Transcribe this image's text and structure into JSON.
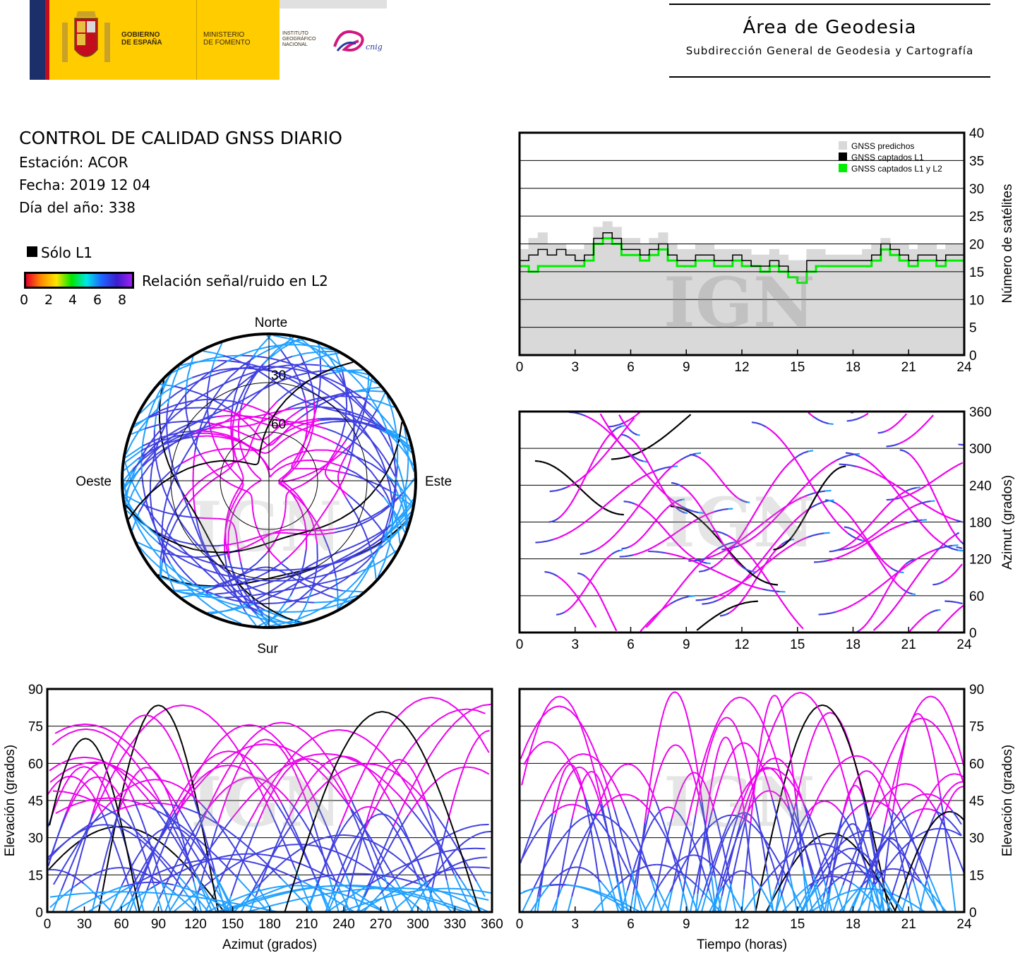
{
  "header": {
    "gobierno": "GOBIERNO\nDE ESPAÑA",
    "ministerio": "MINISTERIO\nDE FOMENTO",
    "instituto": "INSTITUTO\nGEOGRÁFICO\nNACIONAL",
    "cnig": "cnig",
    "area_title": "Área de Geodesia",
    "area_subtitle": "Subdirección General de Geodesia y Cartografía",
    "colors": {
      "yellow": "#ffcc00",
      "red": "#c60b1e",
      "blue": "#1c2f6b"
    }
  },
  "info": {
    "title": "CONTROL DE CALIDAD GNSS DIARIO",
    "station": "Estación: ACOR",
    "date": "Fecha: 2019 12 04",
    "doy": "Día del año: 338"
  },
  "legend": {
    "solo_l1": "Sólo L1",
    "snr_label": "Relación señal/ruido en L2",
    "snr_ticks": [
      "0",
      "2",
      "4",
      "6",
      "8"
    ],
    "colormap": [
      "#e8002a",
      "#ff8c00",
      "#ffe600",
      "#00e600",
      "#00e6e6",
      "#1e64ff",
      "#3c1ecd",
      "#a020f0"
    ]
  },
  "watermark": "IGN",
  "chart_data": [
    {
      "id": "skyplot",
      "type": "scatter",
      "title": "",
      "directions": {
        "north": "Norte",
        "south": "Sur",
        "east": "Este",
        "west": "Oeste"
      },
      "ring_labels": [
        "30",
        "60"
      ],
      "colors": {
        "snr_high": "#ee00ee",
        "snr_mid": "#4040e0",
        "snr_low": "#20a0ff",
        "l1_only": "#000000"
      }
    },
    {
      "id": "satellites",
      "type": "area",
      "xlabel": "",
      "ylabel": "Número de satélites",
      "xlim": [
        0,
        24
      ],
      "ylim": [
        0,
        40
      ],
      "xticks": [
        "0",
        "3",
        "6",
        "9",
        "12",
        "15",
        "18",
        "21",
        "24"
      ],
      "yticks": [
        "0",
        "5",
        "10",
        "15",
        "20",
        "25",
        "30",
        "35",
        "40"
      ],
      "legend_placement": "top-right",
      "grid": true,
      "series": [
        {
          "name": "GNSS predichos",
          "color": "#d9d9d9",
          "x": [
            0,
            0.5,
            1,
            1.5,
            2,
            2.5,
            3,
            3.5,
            4,
            4.5,
            5,
            5.5,
            6,
            6.5,
            7,
            7.5,
            8,
            8.5,
            9,
            9.5,
            10,
            10.5,
            11,
            11.5,
            12,
            12.5,
            13,
            13.5,
            14,
            14.5,
            15,
            15.5,
            16,
            16.5,
            17,
            17.5,
            18,
            18.5,
            19,
            19.5,
            20,
            20.5,
            21,
            21.5,
            22,
            22.5,
            23,
            23.5,
            24
          ],
          "y": [
            19,
            21,
            22,
            20,
            20,
            19,
            19,
            20,
            23,
            24,
            23,
            21,
            21,
            20,
            21,
            22,
            20,
            19,
            19,
            20,
            20,
            19,
            19,
            19,
            19,
            18,
            18,
            19,
            18,
            17,
            17,
            19,
            19,
            18,
            18,
            18,
            18,
            19,
            20,
            21,
            20,
            20,
            19,
            20,
            20,
            19,
            20,
            20,
            19
          ]
        },
        {
          "name": "GNSS captados L1",
          "color": "#000000",
          "x": [
            0,
            0.5,
            1,
            1.5,
            2,
            2.5,
            3,
            3.5,
            4,
            4.5,
            5,
            5.5,
            6,
            6.5,
            7,
            7.5,
            8,
            8.5,
            9,
            9.5,
            10,
            10.5,
            11,
            11.5,
            12,
            12.5,
            13,
            13.5,
            14,
            14.5,
            15,
            15.5,
            16,
            16.5,
            17,
            17.5,
            18,
            18.5,
            19,
            19.5,
            20,
            20.5,
            21,
            21.5,
            22,
            22.5,
            23,
            23.5,
            24
          ],
          "y": [
            17,
            18,
            19,
            18,
            19,
            18,
            17,
            18,
            21,
            22,
            21,
            19,
            19,
            18,
            19,
            20,
            18,
            17,
            17,
            18,
            18,
            17,
            17,
            18,
            17,
            16,
            16,
            17,
            16,
            15,
            15,
            17,
            17,
            17,
            17,
            17,
            17,
            17,
            18,
            20,
            19,
            18,
            17,
            18,
            18,
            17,
            18,
            18,
            17
          ]
        },
        {
          "name": "GNSS captados L1 y L2",
          "color": "#00ee00",
          "x": [
            0,
            0.5,
            1,
            1.5,
            2,
            2.5,
            3,
            3.5,
            4,
            4.5,
            5,
            5.5,
            6,
            6.5,
            7,
            7.5,
            8,
            8.5,
            9,
            9.5,
            10,
            10.5,
            11,
            11.5,
            12,
            12.5,
            13,
            13.5,
            14,
            14.5,
            15,
            15.5,
            16,
            16.5,
            17,
            17.5,
            18,
            18.5,
            19,
            19.5,
            20,
            20.5,
            21,
            21.5,
            22,
            22.5,
            23,
            23.5,
            24
          ],
          "y": [
            16,
            15,
            16,
            16,
            16,
            16,
            16,
            17,
            20,
            21,
            20,
            18,
            18,
            17,
            18,
            19,
            17,
            16,
            16,
            17,
            17,
            16,
            16,
            17,
            16,
            16,
            15,
            16,
            15,
            14,
            13,
            15,
            16,
            16,
            16,
            16,
            16,
            16,
            17,
            19,
            18,
            17,
            16,
            17,
            17,
            16,
            17,
            17,
            16
          ]
        }
      ]
    },
    {
      "id": "azimuth_time",
      "type": "scatter",
      "xlabel": "",
      "ylabel": "Azimut (grados)",
      "xlim": [
        0,
        24
      ],
      "ylim": [
        0,
        360
      ],
      "xticks": [
        "0",
        "3",
        "6",
        "9",
        "12",
        "15",
        "18",
        "21",
        "24"
      ],
      "yticks": [
        "0",
        "60",
        "120",
        "180",
        "240",
        "300",
        "360"
      ],
      "grid": true
    },
    {
      "id": "elevation_azimuth",
      "type": "scatter",
      "xlabel": "Azimut (grados)",
      "ylabel": "Elevación (grados)",
      "xlim": [
        0,
        360
      ],
      "ylim": [
        0,
        90
      ],
      "xticks": [
        "0",
        "30",
        "60",
        "90",
        "120",
        "150",
        "180",
        "210",
        "240",
        "270",
        "300",
        "330",
        "360"
      ],
      "yticks": [
        "0",
        "15",
        "30",
        "45",
        "60",
        "75",
        "90"
      ],
      "grid": true
    },
    {
      "id": "elevation_time",
      "type": "scatter",
      "xlabel": "Tiempo (horas)",
      "ylabel": "Elevación (grados)",
      "xlim": [
        0,
        24
      ],
      "ylim": [
        0,
        90
      ],
      "xticks": [
        "0",
        "3",
        "6",
        "9",
        "12",
        "15",
        "18",
        "21",
        "24"
      ],
      "yticks": [
        "0",
        "15",
        "30",
        "45",
        "60",
        "75",
        "90"
      ],
      "grid": true
    }
  ]
}
